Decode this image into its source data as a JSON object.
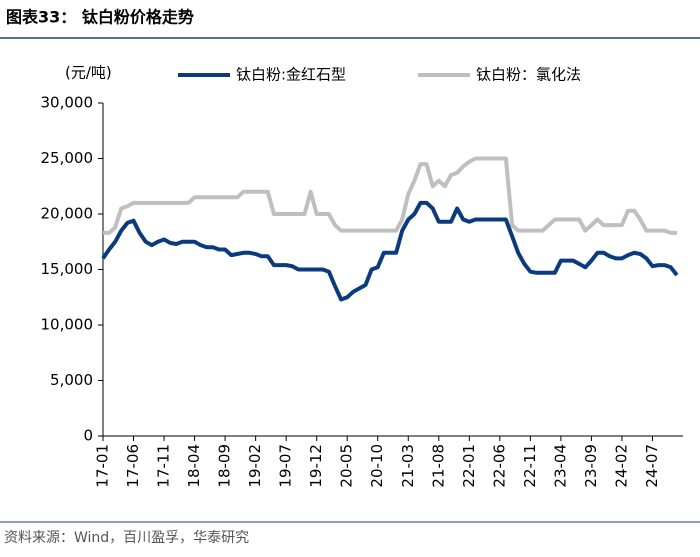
{
  "chart_data": {
    "type": "line",
    "title": "图表33：  钛白粉价格走势",
    "y_label": "(元/吨)",
    "source": "资料来源：Wind，百川盈孚，华泰研究",
    "categories": [
      "17-01",
      null,
      null,
      null,
      null,
      "17-06",
      null,
      null,
      null,
      null,
      "17-11",
      null,
      null,
      null,
      null,
      "18-04",
      null,
      null,
      null,
      null,
      "18-09",
      null,
      null,
      null,
      null,
      "19-02",
      null,
      null,
      null,
      null,
      "19-07",
      null,
      null,
      null,
      null,
      "19-12",
      null,
      null,
      null,
      null,
      "20-05",
      null,
      null,
      null,
      null,
      "20-10",
      null,
      null,
      null,
      null,
      "21-03",
      null,
      null,
      null,
      null,
      "21-08",
      null,
      null,
      null,
      null,
      "22-01",
      null,
      null,
      null,
      null,
      "22-06",
      null,
      null,
      null,
      null,
      "22-11",
      null,
      null,
      null,
      null,
      "23-04",
      null,
      null,
      null,
      null,
      "23-09",
      null,
      null,
      null,
      null,
      "24-02",
      null,
      null,
      null,
      null,
      "24-07",
      null,
      null,
      null,
      null
    ],
    "series": [
      {
        "name": "钛白粉:金红石型",
        "color": "#0b3a7e",
        "values": [
          16000,
          16800,
          17500,
          18500,
          19200,
          19400,
          18300,
          17500,
          17200,
          17500,
          17700,
          17400,
          17300,
          17500,
          17500,
          17500,
          17200,
          17000,
          17000,
          16800,
          16800,
          16300,
          16400,
          16500,
          16500,
          16400,
          16200,
          16200,
          15400,
          15400,
          15400,
          15300,
          15000,
          15000,
          15000,
          15000,
          15000,
          14800,
          13500,
          12300,
          12500,
          13000,
          13300,
          13600,
          15000,
          15200,
          16500,
          16500,
          16500,
          18500,
          19500,
          20000,
          21000,
          21000,
          20500,
          19300,
          19300,
          19300,
          20500,
          19500,
          19300,
          19500,
          19500,
          19500,
          19500,
          19500,
          19500,
          18000,
          16500,
          15500,
          14800,
          14700,
          14700,
          14700,
          14700,
          15800,
          15800,
          15800,
          15500,
          15200,
          15800,
          16500,
          16500,
          16200,
          16000,
          16000,
          16300,
          16500,
          16400,
          16000,
          15300,
          15400,
          15400,
          15200,
          14500
        ]
      },
      {
        "name": "钛白粉：氯化法",
        "color": "#bfbfbf",
        "values": [
          18300,
          18300,
          18800,
          20500,
          20700,
          21000,
          21000,
          21000,
          21000,
          21000,
          21000,
          21000,
          21000,
          21000,
          21000,
          21500,
          21500,
          21500,
          21500,
          21500,
          21500,
          21500,
          21500,
          22000,
          22000,
          22000,
          22000,
          22000,
          20000,
          20000,
          20000,
          20000,
          20000,
          20000,
          22000,
          20000,
          20000,
          20000,
          19000,
          18500,
          18500,
          18500,
          18500,
          18500,
          18500,
          18500,
          18500,
          18500,
          18500,
          19500,
          21800,
          23000,
          24500,
          24500,
          22500,
          23000,
          22500,
          23500,
          23700,
          24300,
          24700,
          25000,
          25000,
          25000,
          25000,
          25000,
          25000,
          19000,
          18500,
          18500,
          18500,
          18500,
          18500,
          19000,
          19500,
          19500,
          19500,
          19500,
          19500,
          18500,
          19000,
          19500,
          19000,
          19000,
          19000,
          19000,
          20300,
          20300,
          19500,
          18500,
          18500,
          18500,
          18500,
          18300,
          18300
        ]
      }
    ],
    "ylim": [
      0,
      30000
    ],
    "yticks": [
      0,
      {
        "value": 5000,
        "label": "5,000"
      },
      {
        "value": 10000,
        "label": "10,000"
      },
      {
        "value": 15000,
        "label": "15,000"
      },
      {
        "value": 20000,
        "label": "20,000"
      },
      {
        "value": 25000,
        "label": "25,000"
      },
      {
        "value": 30000,
        "label": "30,000"
      }
    ]
  }
}
